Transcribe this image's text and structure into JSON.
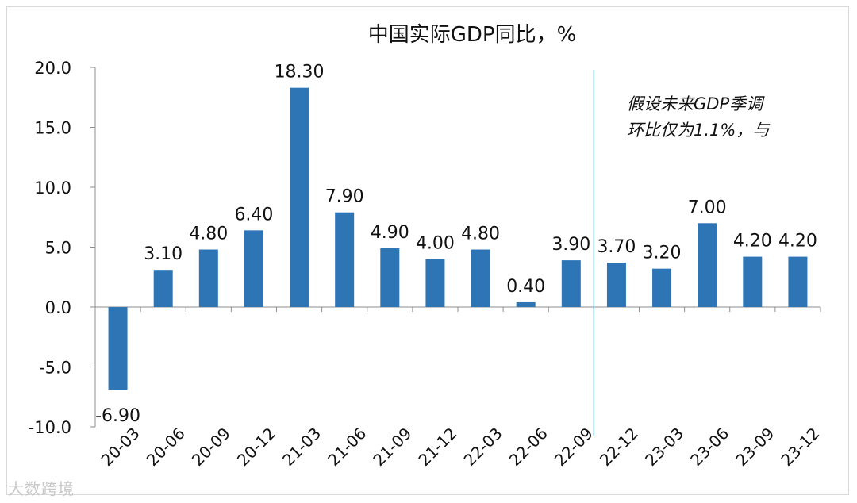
{
  "chart_data": {
    "type": "bar",
    "title": "中国实际GDP同比，%",
    "categories": [
      "20-03",
      "20-06",
      "20-09",
      "20-12",
      "21-03",
      "21-06",
      "21-09",
      "21-12",
      "22-03",
      "22-06",
      "22-09",
      "22-12",
      "23-03",
      "23-06",
      "23-09",
      "23-12"
    ],
    "values": [
      -6.9,
      3.1,
      4.8,
      6.4,
      18.3,
      7.9,
      4.9,
      4.0,
      4.8,
      0.4,
      3.9,
      3.7,
      3.2,
      7.0,
      4.2,
      4.2
    ],
    "data_labels": [
      "-6.90",
      "3.10",
      "4.80",
      "6.40",
      "18.30",
      "7.90",
      "4.90",
      "4.00",
      "4.80",
      "0.40",
      "3.90",
      "3.70",
      "3.20",
      "7.00",
      "4.20",
      "4.20"
    ],
    "ylim": [
      -10,
      20
    ],
    "yticks": [
      20,
      15,
      10,
      5,
      0,
      -5,
      -10
    ],
    "ytick_labels": [
      "20.0",
      "15.0",
      "10.0",
      "5.0",
      "0.0",
      "-5.0",
      "-10.0"
    ],
    "xlabel": "",
    "ylabel": "",
    "bar_color": "#2e75b6",
    "divider_after_category": "22-09",
    "divider_color": "#3a7ca8",
    "annotation": [
      "假设未来GDP季调",
      "环比仅为1.1%，与"
    ]
  },
  "watermark": "大数跨境"
}
